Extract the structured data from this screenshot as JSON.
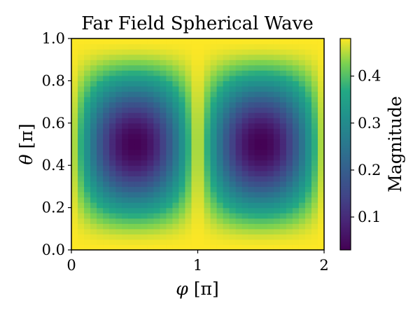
{
  "chart_data": {
    "type": "heatmap",
    "title": "Far Field Spherical Wave",
    "xlabel": "φ [π]",
    "ylabel": "θ [π]",
    "xlabel_symbol": "φ",
    "ylabel_symbol": "θ",
    "label_unit": "[π]",
    "xlim": [
      0,
      2
    ],
    "ylim": [
      0,
      1
    ],
    "x_ticks": [
      0,
      1,
      2
    ],
    "x_tick_labels": [
      "0",
      "1",
      "2"
    ],
    "y_ticks": [
      0.0,
      0.2,
      0.4,
      0.6,
      0.8,
      1.0
    ],
    "y_tick_labels": [
      "0.0",
      "0.2",
      "0.4",
      "0.6",
      "0.8",
      "1.0"
    ],
    "grid_resolution": {
      "phi_cells": 40,
      "theta_cells": 40
    },
    "field_model": "magnitude = 0.48 - 0.45 * |sin(π·φ)| * sin(π·θ)^2",
    "value_range": [
      0.03,
      0.48
    ],
    "minima": [
      {
        "phi": 0.5,
        "theta": 0.5,
        "value": 0.03
      },
      {
        "phi": 1.5,
        "theta": 0.5,
        "value": 0.03
      }
    ],
    "colorbar": {
      "label": "Magnitude",
      "colormap": "viridis",
      "range": [
        0.03,
        0.48
      ],
      "ticks": [
        0.1,
        0.2,
        0.3,
        0.4
      ],
      "tick_labels": [
        "0.1",
        "0.2",
        "0.3",
        "0.4"
      ]
    },
    "grid": false
  }
}
